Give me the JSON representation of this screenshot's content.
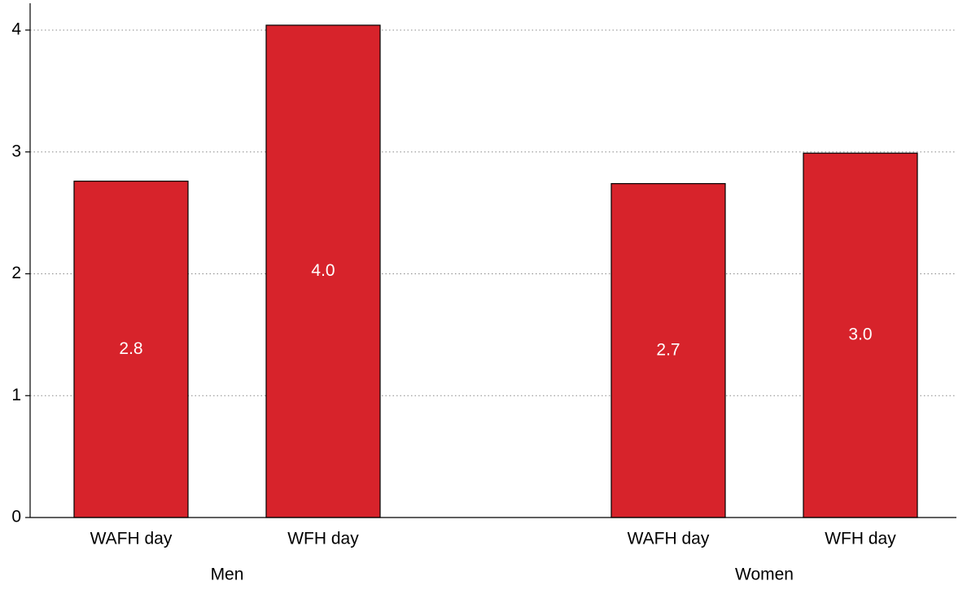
{
  "chart_data": {
    "type": "bar",
    "groups": [
      "Men",
      "Women"
    ],
    "categories": [
      "WAFH day",
      "WFH day"
    ],
    "values": [
      [
        2.76,
        4.04
      ],
      [
        2.74,
        2.99
      ]
    ],
    "value_labels": [
      [
        "2.8",
        "4.0"
      ],
      [
        "2.7",
        "3.0"
      ]
    ],
    "color": "#d7232b",
    "ylim": [
      0,
      4.2
    ],
    "yticks": [
      0,
      1,
      2,
      3,
      4
    ],
    "grid": true
  }
}
